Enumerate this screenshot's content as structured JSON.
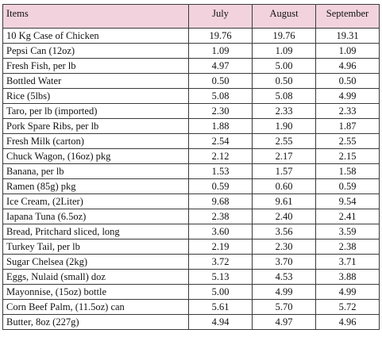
{
  "table": {
    "headers": [
      "Items",
      "July",
      "August",
      "September"
    ],
    "rows": [
      {
        "item": "10 Kg Case of Chicken",
        "july": "19.76",
        "august": "19.76",
        "september": "19.31"
      },
      {
        "item": "Pepsi Can (12oz)",
        "july": "1.09",
        "august": "1.09",
        "september": "1.09"
      },
      {
        "item": "Fresh Fish, per lb",
        "july": "4.97",
        "august": "5.00",
        "september": "4.96"
      },
      {
        "item": "Bottled Water",
        "july": "0.50",
        "august": "0.50",
        "september": "0.50"
      },
      {
        "item": "Rice (5lbs)",
        "july": "5.08",
        "august": "5.08",
        "september": "4.99"
      },
      {
        "item": "Taro, per lb (imported)",
        "july": "2.30",
        "august": "2.33",
        "september": "2.33"
      },
      {
        "item": "Pork Spare Ribs, per lb",
        "july": "1.88",
        "august": "1.90",
        "september": "1.87"
      },
      {
        "item": "Fresh Milk (carton)",
        "july": "2.54",
        "august": "2.55",
        "september": "2.55"
      },
      {
        "item": "Chuck Wagon, (16oz) pkg",
        "july": "2.12",
        "august": "2.17",
        "september": "2.15"
      },
      {
        "item": "Banana, per lb",
        "july": "1.53",
        "august": "1.57",
        "september": "1.58"
      },
      {
        "item": "Ramen (85g) pkg",
        "july": "0.59",
        "august": "0.60",
        "september": "0.59"
      },
      {
        "item": "Ice Cream, (2Liter)",
        "july": "9.68",
        "august": "9.61",
        "september": "9.54"
      },
      {
        "item": "Iapana Tuna (6.5oz)",
        "july": "2.38",
        "august": "2.40",
        "september": "2.41"
      },
      {
        "item": "Bread, Pritchard sliced, long",
        "july": "3.60",
        "august": "3.56",
        "september": "3.59"
      },
      {
        "item": "Turkey Tail, per lb",
        "july": "2.19",
        "august": "2.30",
        "september": "2.38"
      },
      {
        "item": "Sugar Chelsea (2kg)",
        "july": "3.72",
        "august": "3.70",
        "september": "3.71"
      },
      {
        "item": "Eggs, Nulaid (small) doz",
        "july": "5.13",
        "august": "4.53",
        "september": "3.88"
      },
      {
        "item": "Mayonnise, (15oz) bottle",
        "july": "5.00",
        "august": "4.99",
        "september": "4.99"
      },
      {
        "item": "Corn Beef Palm, (11.5oz) can",
        "july": "5.61",
        "august": "5.70",
        "september": "5.72"
      },
      {
        "item": "Butter, 8oz (227g)",
        "july": "4.94",
        "august": "4.97",
        "september": "4.96"
      }
    ]
  }
}
